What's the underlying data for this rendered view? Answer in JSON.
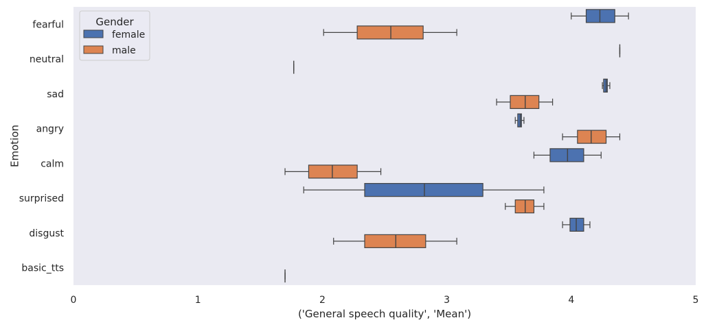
{
  "chart_data": {
    "type": "boxplot",
    "orientation": "horizontal",
    "xlabel": "('General speech quality', 'Mean')",
    "ylabel": "Emotion",
    "xlim": [
      0,
      5
    ],
    "xticks": [
      0,
      1,
      2,
      3,
      4,
      5
    ],
    "grid": false,
    "legend": {
      "title": "Gender",
      "placement": "top-left",
      "entries": [
        "female",
        "male"
      ]
    },
    "colors": {
      "background": "#eaeaf2",
      "female": "#4c72b0",
      "male": "#dd8452",
      "line": "#444444"
    },
    "categories": [
      "fearful",
      "neutral",
      "sad",
      "angry",
      "calm",
      "surprised",
      "disgust",
      "basic_tts"
    ],
    "series": [
      {
        "name": "female",
        "boxes": [
          {
            "whislo": 4.0,
            "q1": 4.12,
            "med": 4.23,
            "q3": 4.35,
            "whishi": 4.46
          },
          {
            "whislo": 4.39,
            "q1": 4.39,
            "med": 4.39,
            "q3": 4.39,
            "whishi": 4.39
          },
          {
            "whislo": 4.25,
            "q1": 4.26,
            "med": 4.28,
            "q3": 4.29,
            "whishi": 4.31
          },
          {
            "whislo": 3.55,
            "q1": 3.57,
            "med": 3.59,
            "q3": 3.6,
            "whishi": 3.62
          },
          {
            "whislo": 3.7,
            "q1": 3.83,
            "med": 3.97,
            "q3": 4.1,
            "whishi": 4.24
          },
          {
            "whislo": 1.85,
            "q1": 2.34,
            "med": 2.82,
            "q3": 3.29,
            "whishi": 3.78
          },
          {
            "whislo": 3.93,
            "q1": 3.99,
            "med": 4.04,
            "q3": 4.1,
            "whishi": 4.15
          },
          null
        ]
      },
      {
        "name": "male",
        "boxes": [
          {
            "whislo": 2.01,
            "q1": 2.28,
            "med": 2.55,
            "q3": 2.81,
            "whishi": 3.08
          },
          {
            "whislo": 1.77,
            "q1": 1.77,
            "med": 1.77,
            "q3": 1.77,
            "whishi": 1.77
          },
          {
            "whislo": 3.4,
            "q1": 3.51,
            "med": 3.63,
            "q3": 3.74,
            "whishi": 3.85
          },
          {
            "whislo": 3.93,
            "q1": 4.05,
            "med": 4.16,
            "q3": 4.28,
            "whishi": 4.39
          },
          {
            "whislo": 1.7,
            "q1": 1.89,
            "med": 2.08,
            "q3": 2.28,
            "whishi": 2.47
          },
          {
            "whislo": 3.47,
            "q1": 3.55,
            "med": 3.63,
            "q3": 3.7,
            "whishi": 3.78
          },
          {
            "whislo": 2.09,
            "q1": 2.34,
            "med": 2.59,
            "q3": 2.83,
            "whishi": 3.08
          },
          {
            "whislo": 1.7,
            "q1": 1.7,
            "med": 1.7,
            "q3": 1.7,
            "whishi": 1.7
          }
        ]
      }
    ]
  }
}
